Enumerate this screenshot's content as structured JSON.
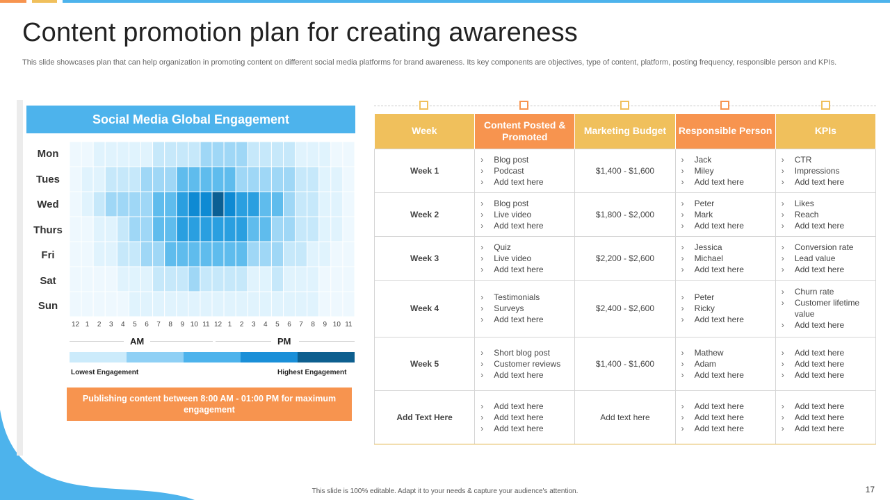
{
  "title": "Content promotion plan for creating awareness",
  "subtitle": "This slide showcases plan that can help organization in promoting content on different social media platforms for brand awareness. Its key components are objectives, type of content, platform, posting frequency, responsible person and KPIs.",
  "colors": {
    "blue": "#4db3ec",
    "orange": "#f7944f",
    "yellow": "#f0c05c",
    "scale": [
      "#ccebfb",
      "#8fd0f5",
      "#4db3ec",
      "#1a8fd8",
      "#0e5f8f"
    ]
  },
  "heatmap": {
    "header": "Social Media Global Engagement",
    "days": [
      "Mon",
      "Tues",
      "Wed",
      "Thurs",
      "Fri",
      "Sat",
      "Sun"
    ],
    "hours": [
      "12",
      "1",
      "2",
      "3",
      "4",
      "5",
      "6",
      "7",
      "8",
      "9",
      "10",
      "11",
      "12",
      "1",
      "2",
      "3",
      "4",
      "5",
      "6",
      "7",
      "8",
      "9",
      "10",
      "11"
    ],
    "am_label": "AM",
    "pm_label": "PM",
    "low_label": "Lowest Engagement",
    "high_label": "Highest Engagement",
    "levels": [
      [
        0,
        0,
        1,
        1,
        1,
        1,
        1,
        2,
        2,
        2,
        2,
        3,
        3,
        3,
        3,
        2,
        2,
        2,
        2,
        1,
        1,
        1,
        0,
        0
      ],
      [
        0,
        1,
        1,
        2,
        2,
        2,
        3,
        3,
        3,
        4,
        4,
        4,
        4,
        4,
        3,
        3,
        3,
        3,
        3,
        2,
        2,
        1,
        1,
        0
      ],
      [
        0,
        1,
        2,
        3,
        3,
        3,
        3,
        4,
        4,
        5,
        6,
        6,
        7,
        6,
        5,
        5,
        4,
        4,
        3,
        2,
        2,
        1,
        1,
        0
      ],
      [
        0,
        0,
        1,
        1,
        2,
        3,
        3,
        4,
        4,
        5,
        5,
        5,
        5,
        5,
        5,
        4,
        4,
        3,
        3,
        2,
        2,
        1,
        1,
        0
      ],
      [
        0,
        0,
        1,
        1,
        2,
        2,
        3,
        3,
        4,
        4,
        4,
        4,
        4,
        4,
        4,
        3,
        3,
        3,
        2,
        2,
        1,
        1,
        0,
        0
      ],
      [
        0,
        0,
        0,
        0,
        1,
        1,
        1,
        2,
        2,
        2,
        3,
        2,
        2,
        2,
        2,
        1,
        1,
        2,
        1,
        1,
        1,
        0,
        0,
        0
      ],
      [
        0,
        0,
        0,
        0,
        0,
        1,
        1,
        1,
        1,
        1,
        1,
        1,
        1,
        1,
        1,
        1,
        1,
        1,
        1,
        1,
        1,
        0,
        0,
        0
      ]
    ],
    "callout": "Publishing content between 8:00 AM - 01:00 PM for maximum engagement"
  },
  "table": {
    "headers": [
      "Week",
      "Content Posted & Promoted",
      "Marketing Budget",
      "Responsible Person",
      "KPIs"
    ],
    "rows": [
      {
        "week": "Week 1",
        "content": [
          "Blog post",
          "Podcast",
          "Add text here"
        ],
        "budget": "$1,400 - $1,600",
        "people": [
          "Jack",
          "Miley",
          "Add text here"
        ],
        "kpis": [
          "CTR",
          "Impressions",
          "Add text here"
        ]
      },
      {
        "week": "Week 2",
        "content": [
          "Blog post",
          "Live video",
          "Add text here"
        ],
        "budget": "$1,800 - $2,000",
        "people": [
          "Peter",
          "Mark",
          "Add text here"
        ],
        "kpis": [
          "Likes",
          "Reach",
          "Add text here"
        ]
      },
      {
        "week": "Week 3",
        "content": [
          "Quiz",
          "Live video",
          "Add text here"
        ],
        "budget": "$2,200 - $2,600",
        "people": [
          "Jessica",
          "Michael",
          "Add text here"
        ],
        "kpis": [
          "Conversion rate",
          "Lead value",
          "Add text here"
        ]
      },
      {
        "week": "Week 4",
        "content": [
          "Testimonials",
          "Surveys",
          "Add text here"
        ],
        "budget": "$2,400 - $2,600",
        "people": [
          "Peter",
          "Ricky",
          "Add text here"
        ],
        "kpis": [
          "Churn rate",
          "Customer lifetime value",
          "Add text here"
        ]
      },
      {
        "week": "Week 5",
        "content": [
          "Short blog post",
          "Customer reviews",
          "Add text here"
        ],
        "budget": "$1,400 - $1,600",
        "people": [
          "Mathew",
          "Adam",
          "Add text here"
        ],
        "kpis": [
          "Add text here",
          "Add text here",
          "Add text here"
        ]
      },
      {
        "week": "Add  Text Here",
        "content": [
          "Add text here",
          "Add text here",
          "Add text here"
        ],
        "budget": "Add text here",
        "people": [
          "Add text here",
          "Add text here",
          "Add text here"
        ],
        "kpis": [
          "Add text here",
          "Add text here",
          "Add text here"
        ]
      }
    ]
  },
  "footer": "This slide is 100% editable. Adapt it to your needs & capture your audience's attention.",
  "page_number": "17"
}
